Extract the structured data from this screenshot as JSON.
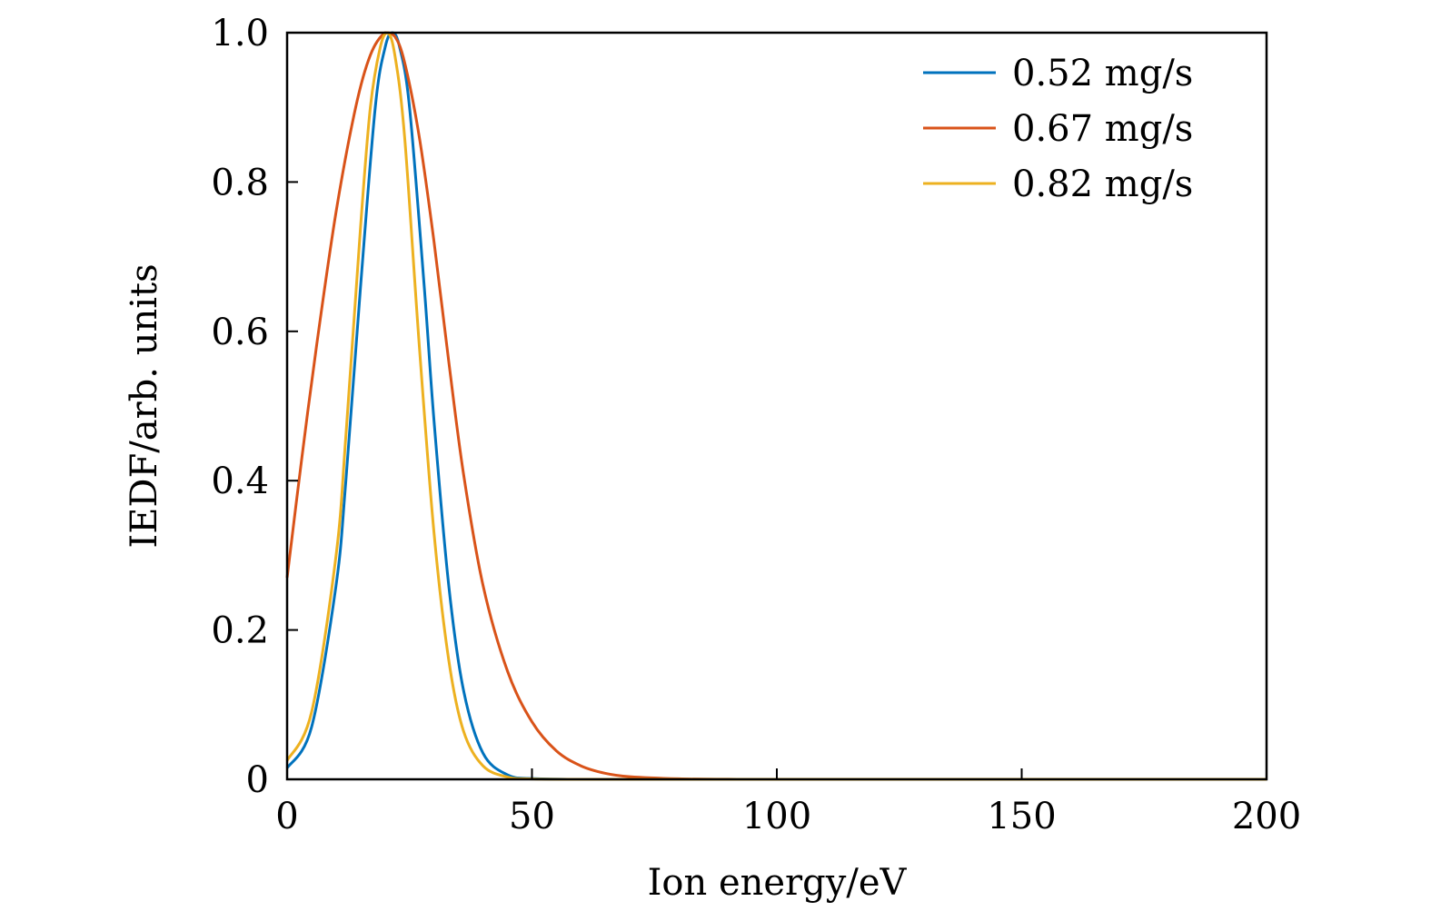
{
  "chart_data": {
    "type": "line",
    "title": "",
    "xlabel": "Ion energy/eV",
    "ylabel": "IEDF/arb. units",
    "xlim": [
      0,
      200
    ],
    "ylim": [
      0,
      1.0
    ],
    "xticks": [
      0,
      50,
      100,
      150,
      200
    ],
    "xtick_labels": [
      "0",
      "50",
      "100",
      "150",
      "200"
    ],
    "yticks": [
      0,
      0.2,
      0.4,
      0.6,
      0.8,
      1.0
    ],
    "ytick_labels": [
      "0",
      "0.2",
      "0.4",
      "0.6",
      "0.8",
      "1.0"
    ],
    "grid": false,
    "legend_position": "top-right",
    "series": [
      {
        "name": "0.52 mg/s",
        "color": "#0072BD",
        "x": [
          0,
          5,
          10,
          12,
          15,
          18,
          20,
          21.5,
          23,
          25,
          28,
          30,
          33,
          36,
          40,
          45,
          50,
          60,
          80,
          100,
          150,
          200
        ],
        "values": [
          0.015,
          0.07,
          0.26,
          0.4,
          0.66,
          0.9,
          0.98,
          1.0,
          0.98,
          0.9,
          0.66,
          0.48,
          0.26,
          0.12,
          0.035,
          0.006,
          0.001,
          0.0,
          0.0,
          0.0,
          0.0,
          0.0
        ]
      },
      {
        "name": "0.67 mg/s",
        "color": "#D95319",
        "x": [
          0,
          3,
          6,
          10,
          14,
          17,
          20,
          22,
          24,
          27,
          30,
          33,
          36,
          40,
          45,
          50,
          55,
          60,
          65,
          70,
          80,
          90,
          100,
          150,
          200
        ],
        "values": [
          0.27,
          0.43,
          0.58,
          0.76,
          0.9,
          0.97,
          1.0,
          0.995,
          0.96,
          0.86,
          0.72,
          0.56,
          0.41,
          0.26,
          0.145,
          0.077,
          0.038,
          0.018,
          0.008,
          0.0035,
          0.0007,
          0.0001,
          0.0,
          0.0,
          0.0
        ]
      },
      {
        "name": "0.82 mg/s",
        "color": "#EDB120",
        "x": [
          0,
          5,
          10,
          12,
          15,
          17,
          19,
          20.5,
          22,
          24,
          27,
          30,
          33,
          36,
          40,
          45,
          50,
          60,
          100,
          150,
          200
        ],
        "values": [
          0.025,
          0.09,
          0.3,
          0.46,
          0.74,
          0.9,
          0.98,
          1.0,
          0.97,
          0.86,
          0.58,
          0.33,
          0.16,
          0.065,
          0.018,
          0.003,
          0.0005,
          0.0,
          0.0,
          0.0,
          0.0
        ]
      }
    ]
  }
}
